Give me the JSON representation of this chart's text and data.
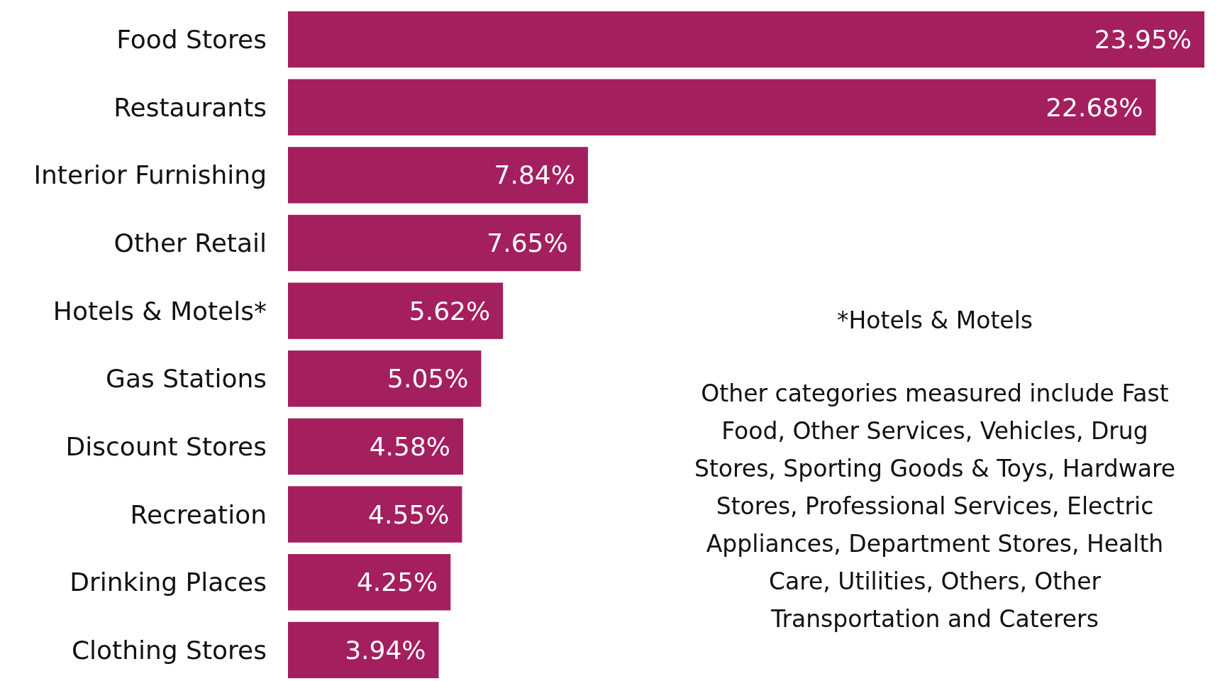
{
  "chart_data": {
    "type": "bar",
    "orientation": "horizontal",
    "categories": [
      "Food Stores",
      "Restaurants",
      "Interior Furnishing",
      "Other Retail",
      "Hotels & Motels*",
      "Gas Stations",
      "Discount Stores",
      "Recreation",
      "Drinking Places",
      "Clothing Stores"
    ],
    "values": [
      23.95,
      22.68,
      7.84,
      7.65,
      5.62,
      5.05,
      4.58,
      4.55,
      4.25,
      3.94
    ],
    "value_labels": [
      "23.95%",
      "22.68%",
      "7.84%",
      "7.65%",
      "5.62%",
      "5.05%",
      "4.58%",
      "4.55%",
      "4.25%",
      "3.94%"
    ],
    "color": "#a31f5e",
    "annotations": [
      "*Hotels & Motels",
      "Other categories measured include Fast Food, Other Services, Vehicles, Drug Stores, Sporting Goods & Toys, Hardware Stores, Professional Services, Electric Appliances, Department Stores, Health Care, Utilities, Others, Other Transportation and Caterers"
    ]
  }
}
